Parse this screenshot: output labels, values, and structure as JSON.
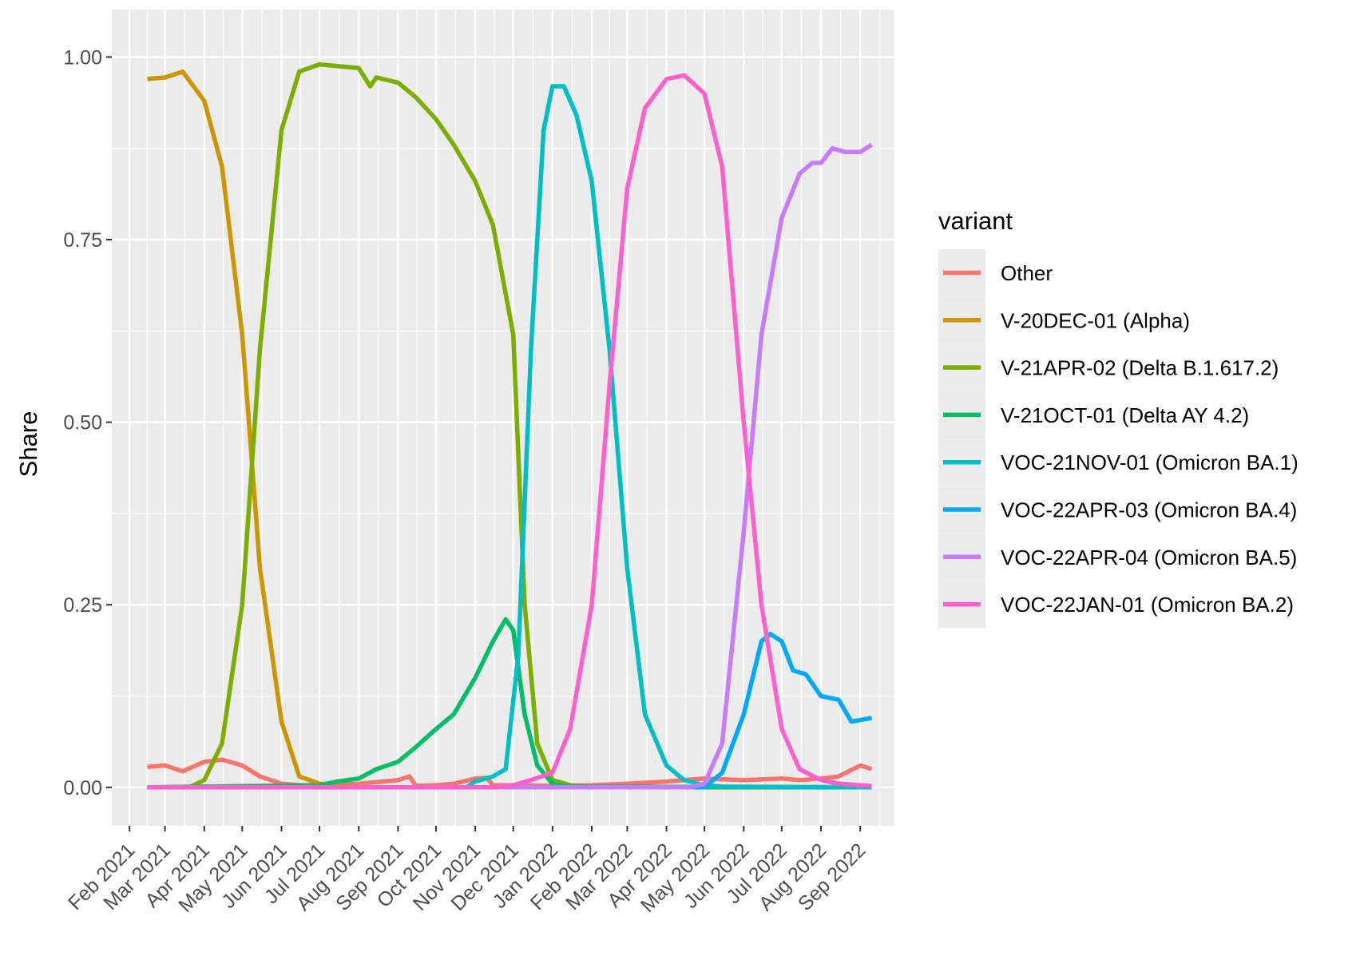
{
  "chart_data": {
    "type": "line",
    "xlabel": "",
    "ylabel": "Share",
    "ylim": [
      0,
      1
    ],
    "xlim": [
      "2021-01-18",
      "2022-09-28"
    ],
    "y_ticks": [
      {
        "value": 0,
        "label": "0.00"
      },
      {
        "value": 0.25,
        "label": "0.25"
      },
      {
        "value": 0.5,
        "label": "0.50"
      },
      {
        "value": 0.75,
        "label": "0.75"
      },
      {
        "value": 1,
        "label": "1.00"
      }
    ],
    "x_ticks": [
      {
        "value": "2021-02-01",
        "label": "Feb 2021"
      },
      {
        "value": "2021-03-01",
        "label": "Mar 2021"
      },
      {
        "value": "2021-04-01",
        "label": "Apr 2021"
      },
      {
        "value": "2021-05-01",
        "label": "May 2021"
      },
      {
        "value": "2021-06-01",
        "label": "Jun 2021"
      },
      {
        "value": "2021-07-01",
        "label": "Jul 2021"
      },
      {
        "value": "2021-08-01",
        "label": "Aug 2021"
      },
      {
        "value": "2021-09-01",
        "label": "Sep 2021"
      },
      {
        "value": "2021-10-01",
        "label": "Oct 2021"
      },
      {
        "value": "2021-11-01",
        "label": "Nov 2021"
      },
      {
        "value": "2021-12-01",
        "label": "Dec 2021"
      },
      {
        "value": "2022-01-01",
        "label": "Jan 2022"
      },
      {
        "value": "2022-02-01",
        "label": "Feb 2022"
      },
      {
        "value": "2022-03-01",
        "label": "Mar 2022"
      },
      {
        "value": "2022-04-01",
        "label": "Apr 2022"
      },
      {
        "value": "2022-05-01",
        "label": "May 2022"
      },
      {
        "value": "2022-06-01",
        "label": "Jun 2022"
      },
      {
        "value": "2022-07-01",
        "label": "Jul 2022"
      },
      {
        "value": "2022-08-01",
        "label": "Aug 2022"
      },
      {
        "value": "2022-09-01",
        "label": "Sep 2022"
      }
    ],
    "grid": true,
    "legend": {
      "title": "variant",
      "position": "right"
    },
    "series": [
      {
        "name": "Other",
        "color": "#F8766D",
        "points": [
          [
            "2021-02-15",
            0.028
          ],
          [
            "2021-03-01",
            0.03
          ],
          [
            "2021-03-15",
            0.022
          ],
          [
            "2021-04-01",
            0.035
          ],
          [
            "2021-04-15",
            0.038
          ],
          [
            "2021-05-01",
            0.03
          ],
          [
            "2021-05-15",
            0.015
          ],
          [
            "2021-06-01",
            0.005
          ],
          [
            "2021-06-15",
            0.003
          ],
          [
            "2021-07-01",
            0.003
          ],
          [
            "2021-08-01",
            0.005
          ],
          [
            "2021-09-01",
            0.01
          ],
          [
            "2021-09-10",
            0.015
          ],
          [
            "2021-09-15",
            0.002
          ],
          [
            "2021-10-01",
            0.003
          ],
          [
            "2021-10-15",
            0.005
          ],
          [
            "2021-11-01",
            0.012
          ],
          [
            "2021-11-10",
            0.013
          ],
          [
            "2021-11-15",
            0.003
          ],
          [
            "2021-12-01",
            0.003
          ],
          [
            "2022-01-01",
            0.002
          ],
          [
            "2022-02-01",
            0.003
          ],
          [
            "2022-03-01",
            0.005
          ],
          [
            "2022-04-01",
            0.008
          ],
          [
            "2022-04-15",
            0.01
          ],
          [
            "2022-05-01",
            0.012
          ],
          [
            "2022-06-01",
            0.01
          ],
          [
            "2022-07-01",
            0.012
          ],
          [
            "2022-07-15",
            0.01
          ],
          [
            "2022-08-01",
            0.012
          ],
          [
            "2022-08-15",
            0.015
          ],
          [
            "2022-09-01",
            0.03
          ],
          [
            "2022-09-10",
            0.025
          ]
        ]
      },
      {
        "name": "V-20DEC-01 (Alpha)",
        "color": "#CD9600",
        "points": [
          [
            "2021-02-15",
            0.97
          ],
          [
            "2021-03-01",
            0.972
          ],
          [
            "2021-03-15",
            0.98
          ],
          [
            "2021-04-01",
            0.94
          ],
          [
            "2021-04-15",
            0.85
          ],
          [
            "2021-05-01",
            0.62
          ],
          [
            "2021-05-15",
            0.3
          ],
          [
            "2021-06-01",
            0.09
          ],
          [
            "2021-06-15",
            0.015
          ],
          [
            "2021-07-01",
            0.005
          ],
          [
            "2021-07-15",
            0.002
          ],
          [
            "2021-08-01",
            0.0
          ],
          [
            "2022-09-10",
            0.0
          ]
        ]
      },
      {
        "name": "V-21APR-02 (Delta B.1.617.2)",
        "color": "#7CAE00",
        "points": [
          [
            "2021-02-15",
            0.0
          ],
          [
            "2021-03-20",
            0.0
          ],
          [
            "2021-04-01",
            0.01
          ],
          [
            "2021-04-15",
            0.06
          ],
          [
            "2021-05-01",
            0.25
          ],
          [
            "2021-05-15",
            0.6
          ],
          [
            "2021-06-01",
            0.9
          ],
          [
            "2021-06-15",
            0.98
          ],
          [
            "2021-07-01",
            0.99
          ],
          [
            "2021-08-01",
            0.985
          ],
          [
            "2021-08-10",
            0.96
          ],
          [
            "2021-08-15",
            0.972
          ],
          [
            "2021-09-01",
            0.965
          ],
          [
            "2021-09-15",
            0.945
          ],
          [
            "2021-10-01",
            0.915
          ],
          [
            "2021-10-15",
            0.88
          ],
          [
            "2021-11-01",
            0.83
          ],
          [
            "2021-11-15",
            0.77
          ],
          [
            "2021-12-01",
            0.62
          ],
          [
            "2021-12-10",
            0.25
          ],
          [
            "2021-12-20",
            0.06
          ],
          [
            "2022-01-01",
            0.01
          ],
          [
            "2022-01-15",
            0.003
          ],
          [
            "2022-02-01",
            0.0
          ],
          [
            "2022-09-10",
            0.0
          ]
        ]
      },
      {
        "name": "V-21OCT-01 (Delta AY 4.2)",
        "color": "#00BE67",
        "points": [
          [
            "2021-02-15",
            0.0
          ],
          [
            "2021-07-01",
            0.003
          ],
          [
            "2021-07-15",
            0.008
          ],
          [
            "2021-08-01",
            0.012
          ],
          [
            "2021-08-15",
            0.025
          ],
          [
            "2021-09-01",
            0.035
          ],
          [
            "2021-09-15",
            0.055
          ],
          [
            "2021-10-01",
            0.08
          ],
          [
            "2021-10-15",
            0.1
          ],
          [
            "2021-11-01",
            0.15
          ],
          [
            "2021-11-15",
            0.2
          ],
          [
            "2021-11-25",
            0.23
          ],
          [
            "2021-12-01",
            0.215
          ],
          [
            "2021-12-10",
            0.1
          ],
          [
            "2021-12-20",
            0.03
          ],
          [
            "2022-01-01",
            0.005
          ],
          [
            "2022-01-15",
            0.001
          ],
          [
            "2022-09-10",
            0.0
          ]
        ]
      },
      {
        "name": "VOC-21NOV-01 (Omicron BA.1)",
        "color": "#00BFC4",
        "points": [
          [
            "2021-02-15",
            0.0
          ],
          [
            "2021-10-25",
            0.0
          ],
          [
            "2021-11-01",
            0.008
          ],
          [
            "2021-11-15",
            0.015
          ],
          [
            "2021-11-25",
            0.025
          ],
          [
            "2021-12-05",
            0.18
          ],
          [
            "2021-12-15",
            0.6
          ],
          [
            "2021-12-25",
            0.9
          ],
          [
            "2022-01-01",
            0.96
          ],
          [
            "2022-01-10",
            0.96
          ],
          [
            "2022-01-20",
            0.92
          ],
          [
            "2022-02-01",
            0.83
          ],
          [
            "2022-02-15",
            0.6
          ],
          [
            "2022-03-01",
            0.3
          ],
          [
            "2022-03-15",
            0.1
          ],
          [
            "2022-04-01",
            0.03
          ],
          [
            "2022-04-15",
            0.01
          ],
          [
            "2022-05-01",
            0.003
          ],
          [
            "2022-05-15",
            0.001
          ],
          [
            "2022-09-10",
            0.0
          ]
        ]
      },
      {
        "name": "VOC-22APR-03 (Omicron BA.4)",
        "color": "#00A9FF",
        "points": [
          [
            "2021-02-15",
            0.0
          ],
          [
            "2022-05-01",
            0.0
          ],
          [
            "2022-05-15",
            0.02
          ],
          [
            "2022-06-01",
            0.1
          ],
          [
            "2022-06-15",
            0.2
          ],
          [
            "2022-06-22",
            0.21
          ],
          [
            "2022-07-01",
            0.2
          ],
          [
            "2022-07-10",
            0.16
          ],
          [
            "2022-07-20",
            0.155
          ],
          [
            "2022-08-01",
            0.125
          ],
          [
            "2022-08-15",
            0.12
          ],
          [
            "2022-08-25",
            0.09
          ],
          [
            "2022-09-10",
            0.095
          ]
        ]
      },
      {
        "name": "VOC-22APR-04 (Omicron BA.5)",
        "color": "#C77CFF",
        "points": [
          [
            "2021-02-15",
            0.0
          ],
          [
            "2022-04-20",
            0.0
          ],
          [
            "2022-05-01",
            0.005
          ],
          [
            "2022-05-15",
            0.06
          ],
          [
            "2022-06-01",
            0.35
          ],
          [
            "2022-06-15",
            0.62
          ],
          [
            "2022-07-01",
            0.78
          ],
          [
            "2022-07-15",
            0.84
          ],
          [
            "2022-07-25",
            0.855
          ],
          [
            "2022-08-01",
            0.855
          ],
          [
            "2022-08-10",
            0.875
          ],
          [
            "2022-08-20",
            0.87
          ],
          [
            "2022-09-01",
            0.87
          ],
          [
            "2022-09-10",
            0.88
          ]
        ]
      },
      {
        "name": "VOC-22JAN-01 (Omicron BA.2)",
        "color": "#FF61CC",
        "points": [
          [
            "2021-02-15",
            0.0
          ],
          [
            "2021-11-15",
            0.0
          ],
          [
            "2021-12-01",
            0.003
          ],
          [
            "2021-12-15",
            0.01
          ],
          [
            "2022-01-01",
            0.02
          ],
          [
            "2022-01-15",
            0.08
          ],
          [
            "2022-02-01",
            0.25
          ],
          [
            "2022-02-15",
            0.55
          ],
          [
            "2022-03-01",
            0.82
          ],
          [
            "2022-03-15",
            0.93
          ],
          [
            "2022-04-01",
            0.97
          ],
          [
            "2022-04-15",
            0.975
          ],
          [
            "2022-05-01",
            0.95
          ],
          [
            "2022-05-15",
            0.85
          ],
          [
            "2022-06-01",
            0.5
          ],
          [
            "2022-06-15",
            0.25
          ],
          [
            "2022-07-01",
            0.08
          ],
          [
            "2022-07-15",
            0.025
          ],
          [
            "2022-08-01",
            0.01
          ],
          [
            "2022-08-15",
            0.005
          ],
          [
            "2022-09-01",
            0.003
          ],
          [
            "2022-09-10",
            0.002
          ]
        ]
      }
    ]
  }
}
